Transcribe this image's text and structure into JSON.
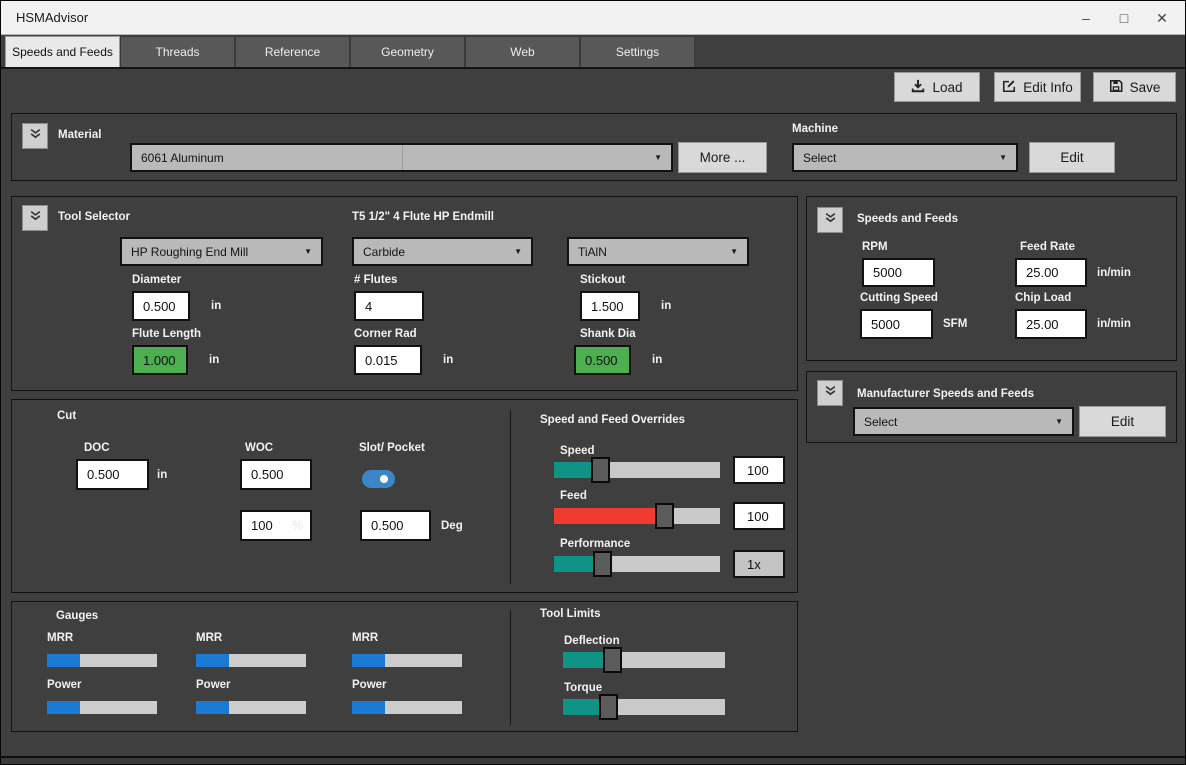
{
  "colors": {
    "background": "#3f3f3f",
    "accent_green": "#4caf50",
    "slider_teal": "#0e9384",
    "slider_red": "#f23b2f",
    "gauge_blue": "#1a7ad4",
    "toggle_blue": "#3a86c8"
  },
  "window": {
    "title": "HSMAdvisor",
    "minimize": "–",
    "maximize": "□",
    "close": "✕"
  },
  "tabs": [
    {
      "label": "Speeds and Feeds",
      "active": true
    },
    {
      "label": "Threads",
      "active": false
    },
    {
      "label": "Reference",
      "active": false
    },
    {
      "label": "Geometry",
      "active": false
    },
    {
      "label": "Web",
      "active": false
    },
    {
      "label": "Settings",
      "active": false
    }
  ],
  "toolbar": {
    "load": "Load",
    "edit_info": "Edit Info",
    "save": "Save"
  },
  "material": {
    "title": "Material",
    "selected": "6061 Aluminum",
    "more_button": "More ...",
    "machine": {
      "label": "Machine",
      "selected": "Select",
      "edit_button": "Edit"
    }
  },
  "tool_selector": {
    "title": "Tool Selector",
    "tool_name": "T5 1/2\" 4 Flute HP Endmill",
    "tool_type": "HP Roughing End Mill",
    "tool_material": "Carbide",
    "coating": "TiAlN",
    "diameter": {
      "label": "Diameter",
      "value": "0.500",
      "unit": "in"
    },
    "flutes": {
      "label": "# Flutes",
      "value": "4"
    },
    "stickout": {
      "label": "Stickout",
      "value": "1.500",
      "unit": "in"
    },
    "flute_length": {
      "label": "Flute Length",
      "value": "1.000",
      "unit": "in"
    },
    "corner_rad": {
      "label": "Corner Rad",
      "value": "0.015",
      "unit": "in"
    },
    "shank_dia": {
      "label": "Shank Dia",
      "value": "0.500",
      "unit": "in"
    }
  },
  "speeds_feeds": {
    "title": "Speeds and Feeds",
    "rpm": {
      "label": "RPM",
      "value": "5000"
    },
    "feed_rate": {
      "label": "Feed Rate",
      "value": "25.00",
      "unit": "in/min"
    },
    "cutting_speed": {
      "label": "Cutting Speed",
      "value": "5000",
      "unit": "SFM"
    },
    "chip_load": {
      "label": "Chip Load",
      "value": "25.00",
      "unit": "in/min"
    }
  },
  "manufacturer": {
    "title": "Manufacturer Speeds and Feeds",
    "selected": "Select",
    "edit_button": "Edit"
  },
  "cut": {
    "title": "Cut",
    "doc": {
      "label": "DOC",
      "value": "0.500",
      "unit": "in"
    },
    "woc": {
      "label": "WOC",
      "value": "0.500"
    },
    "slot_pocket": {
      "label": "Slot/ Pocket",
      "on": true
    },
    "woc_percent": {
      "value": "100",
      "unit": "%"
    },
    "ramp_angle": {
      "value": "0.500",
      "unit": "Deg"
    }
  },
  "overrides": {
    "title": "Speed and Feed Overrides",
    "speed": {
      "label": "Speed",
      "value": "100",
      "fill_pct": 25,
      "handle_pct": 28
    },
    "feed": {
      "label": "Feed",
      "value": "100",
      "fill_pct": 63,
      "handle_pct": 66
    },
    "performance": {
      "label": "Performance",
      "value": "1x",
      "fill_pct": 26,
      "handle_pct": 29
    }
  },
  "gauges": {
    "title": "Gauges",
    "columns": [
      {
        "mrr_label": "MRR",
        "mrr_pct": 30,
        "power_label": "Power",
        "power_pct": 30
      },
      {
        "mrr_label": "MRR",
        "mrr_pct": 30,
        "power_label": "Power",
        "power_pct": 30
      },
      {
        "mrr_label": "MRR",
        "mrr_pct": 30,
        "power_label": "Power",
        "power_pct": 30
      }
    ]
  },
  "tool_limits": {
    "title": "Tool Limits",
    "deflection": {
      "label": "Deflection",
      "fill_pct": 27,
      "handle_pct": 30
    },
    "torque": {
      "label": "Torque",
      "fill_pct": 25,
      "handle_pct": 28
    }
  }
}
